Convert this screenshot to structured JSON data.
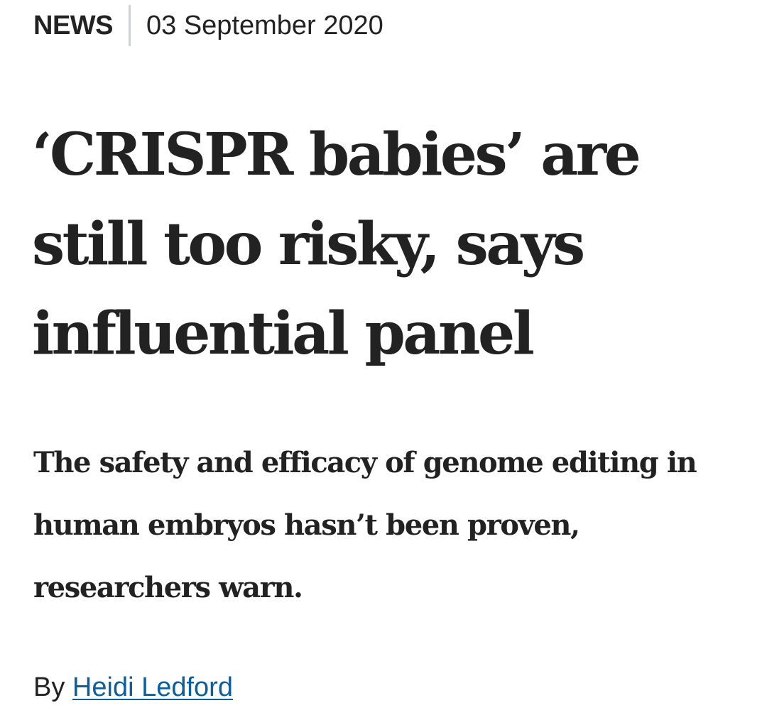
{
  "article": {
    "category": "NEWS",
    "date": "03 September 2020",
    "title": "‘CRISPR babies’ are still too risky, says influential panel",
    "standfirst": "The safety and efficacy of genome editing in human embryos hasn’t been proven, researchers warn.",
    "byline_prefix": "By",
    "author": "Heidi Ledford"
  },
  "colors": {
    "text": "#222222",
    "divider": "#c9d3dc",
    "link": "#0c5f9e"
  }
}
